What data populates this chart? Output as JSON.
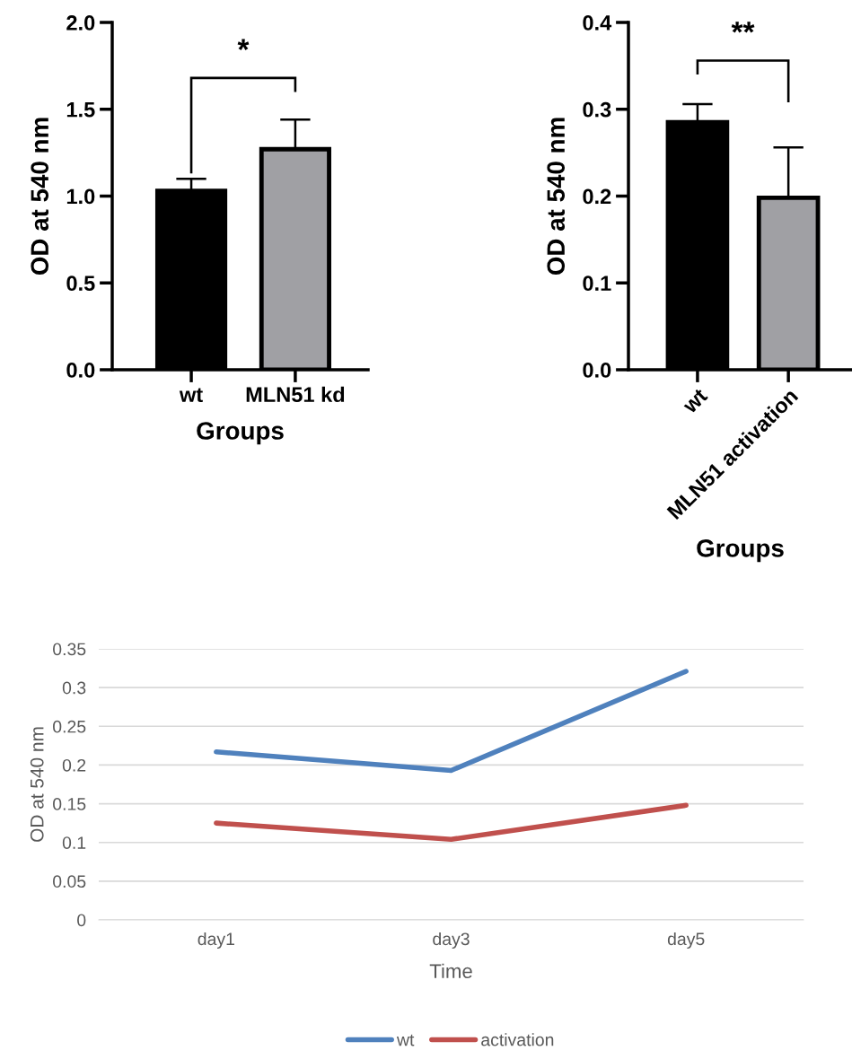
{
  "chart_data": [
    {
      "type": "bar",
      "ylabel": "OD at 540 nm",
      "xlabel": "Groups",
      "categories": [
        "wt",
        "MLN51 kd"
      ],
      "values": [
        1.03,
        1.27
      ],
      "colors": [
        "#000000",
        "#a0a0a4"
      ],
      "errors": [
        0.07,
        0.17
      ],
      "ylim": [
        0,
        2.0
      ],
      "yticks": [
        {
          "value": 0,
          "label": "0.0"
        },
        {
          "value": 0.5,
          "label": "0.5"
        },
        {
          "value": 1.0,
          "label": "1.0"
        },
        {
          "value": 1.5,
          "label": "1.5"
        },
        {
          "value": 2.0,
          "label": "2.0"
        }
      ],
      "annotations": [
        "*"
      ],
      "grid": false
    },
    {
      "type": "bar",
      "ylabel": "OD at 540 nm",
      "xlabel": "Groups",
      "categories": [
        "wt",
        "MLN51 activation"
      ],
      "values": [
        0.285,
        0.198
      ],
      "colors": [
        "#000000",
        "#a0a0a4"
      ],
      "errors": [
        0.021,
        0.058
      ],
      "ylim": [
        0,
        0.4
      ],
      "yticks": [
        {
          "value": 0,
          "label": "0.0"
        },
        {
          "value": 0.1,
          "label": "0.1"
        },
        {
          "value": 0.2,
          "label": "0.2"
        },
        {
          "value": 0.3,
          "label": "0.3"
        },
        {
          "value": 0.4,
          "label": "0.4"
        }
      ],
      "annotations": [
        "**"
      ],
      "grid": false
    },
    {
      "type": "line",
      "ylabel": "OD at 540 nm",
      "xlabel": "Time",
      "categories": [
        "day1",
        "day3",
        "day5"
      ],
      "series": [
        {
          "name": "wt",
          "color": "#4f81bd",
          "values": [
            0.217,
            0.193,
            0.321
          ]
        },
        {
          "name": "activation",
          "color": "#c0504d",
          "values": [
            0.125,
            0.104,
            0.148
          ]
        }
      ],
      "ylim": [
        0,
        0.35
      ],
      "yticks": [
        0,
        0.05,
        0.1,
        0.15,
        0.2,
        0.25,
        0.3,
        0.35
      ],
      "grid": "y",
      "legend": "bottom",
      "marker": "none",
      "line_style": "solid"
    }
  ]
}
